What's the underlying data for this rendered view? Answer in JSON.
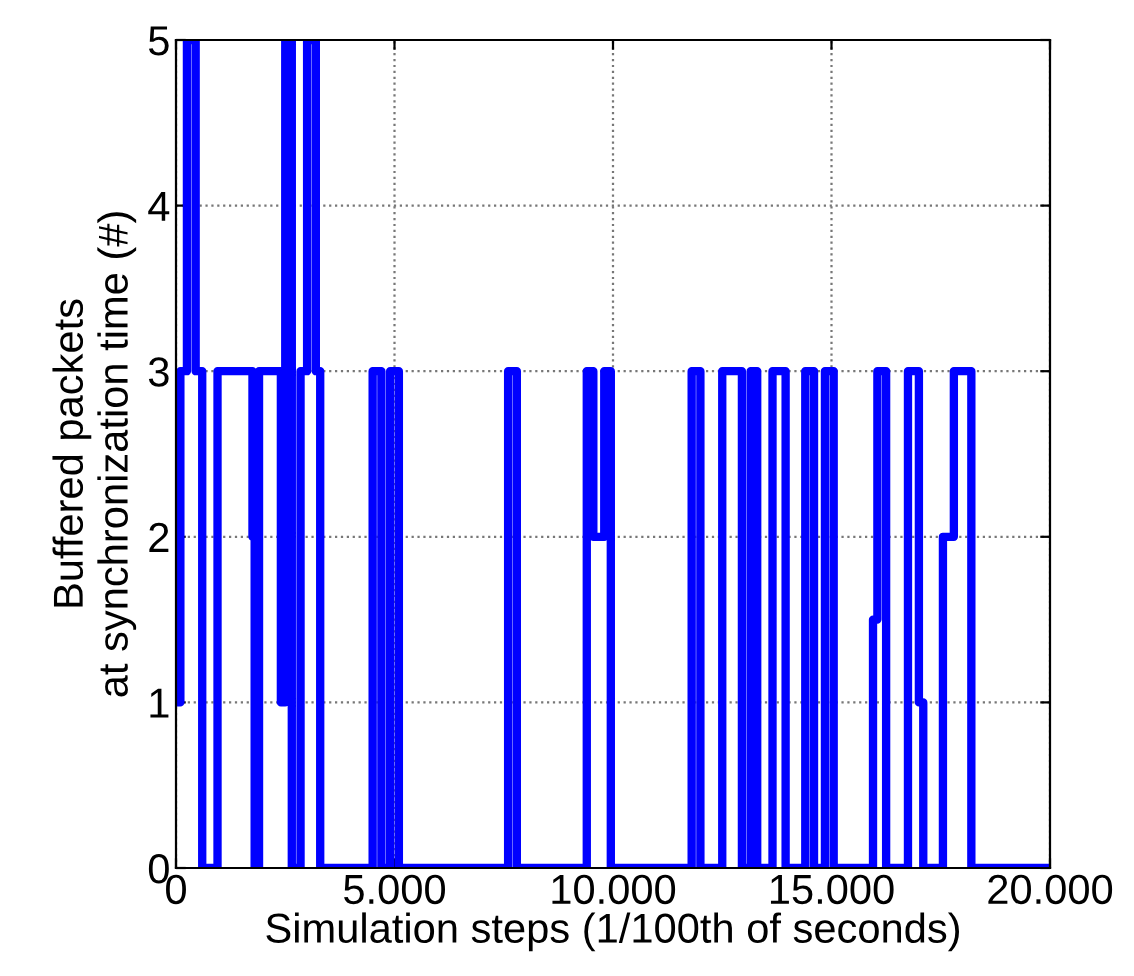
{
  "chart_data": {
    "type": "step",
    "xlabel": "Simulation steps (1/100th of seconds)",
    "ylabel": "Buffered packets\nat synchronization time (#)",
    "x": [
      0,
      100,
      250,
      450,
      600,
      950,
      1750,
      1800,
      1900,
      2400,
      2500,
      2650,
      2850,
      3000,
      3200,
      3300,
      4500,
      4700,
      4900,
      5100,
      7600,
      7800,
      9400,
      9550,
      9800,
      9950,
      11800,
      12000,
      12500,
      12950,
      13150,
      13300,
      13650,
      13950,
      14400,
      14600,
      14850,
      15050,
      15950,
      16050,
      16250,
      16750,
      17000,
      17100,
      17550,
      17800,
      18200,
      20000
    ],
    "series": [
      {
        "color": "#0000ff",
        "values": [
          1,
          3,
          5,
          3,
          0,
          3,
          2,
          0,
          3,
          1,
          5,
          0,
          3,
          5,
          3,
          0,
          3,
          0,
          3,
          0,
          3,
          0,
          3,
          2,
          3,
          0,
          3,
          0,
          3,
          0,
          3,
          0,
          3,
          0,
          3,
          0,
          3,
          0,
          1.5,
          3,
          0,
          3,
          1,
          0,
          2,
          3,
          0,
          0
        ]
      }
    ],
    "xlim": [
      0,
      20000
    ],
    "ylim": [
      0,
      5
    ],
    "xticks": [
      0,
      {
        "value": 5000,
        "label": "5.000"
      },
      {
        "value": 10000,
        "label": "10.000"
      },
      {
        "value": 15000,
        "label": "15.000"
      },
      {
        "value": 20000,
        "label": "20.000"
      }
    ],
    "yticks": [
      0,
      1,
      2,
      3,
      4,
      5
    ],
    "grid": true,
    "line_style": "solid"
  }
}
